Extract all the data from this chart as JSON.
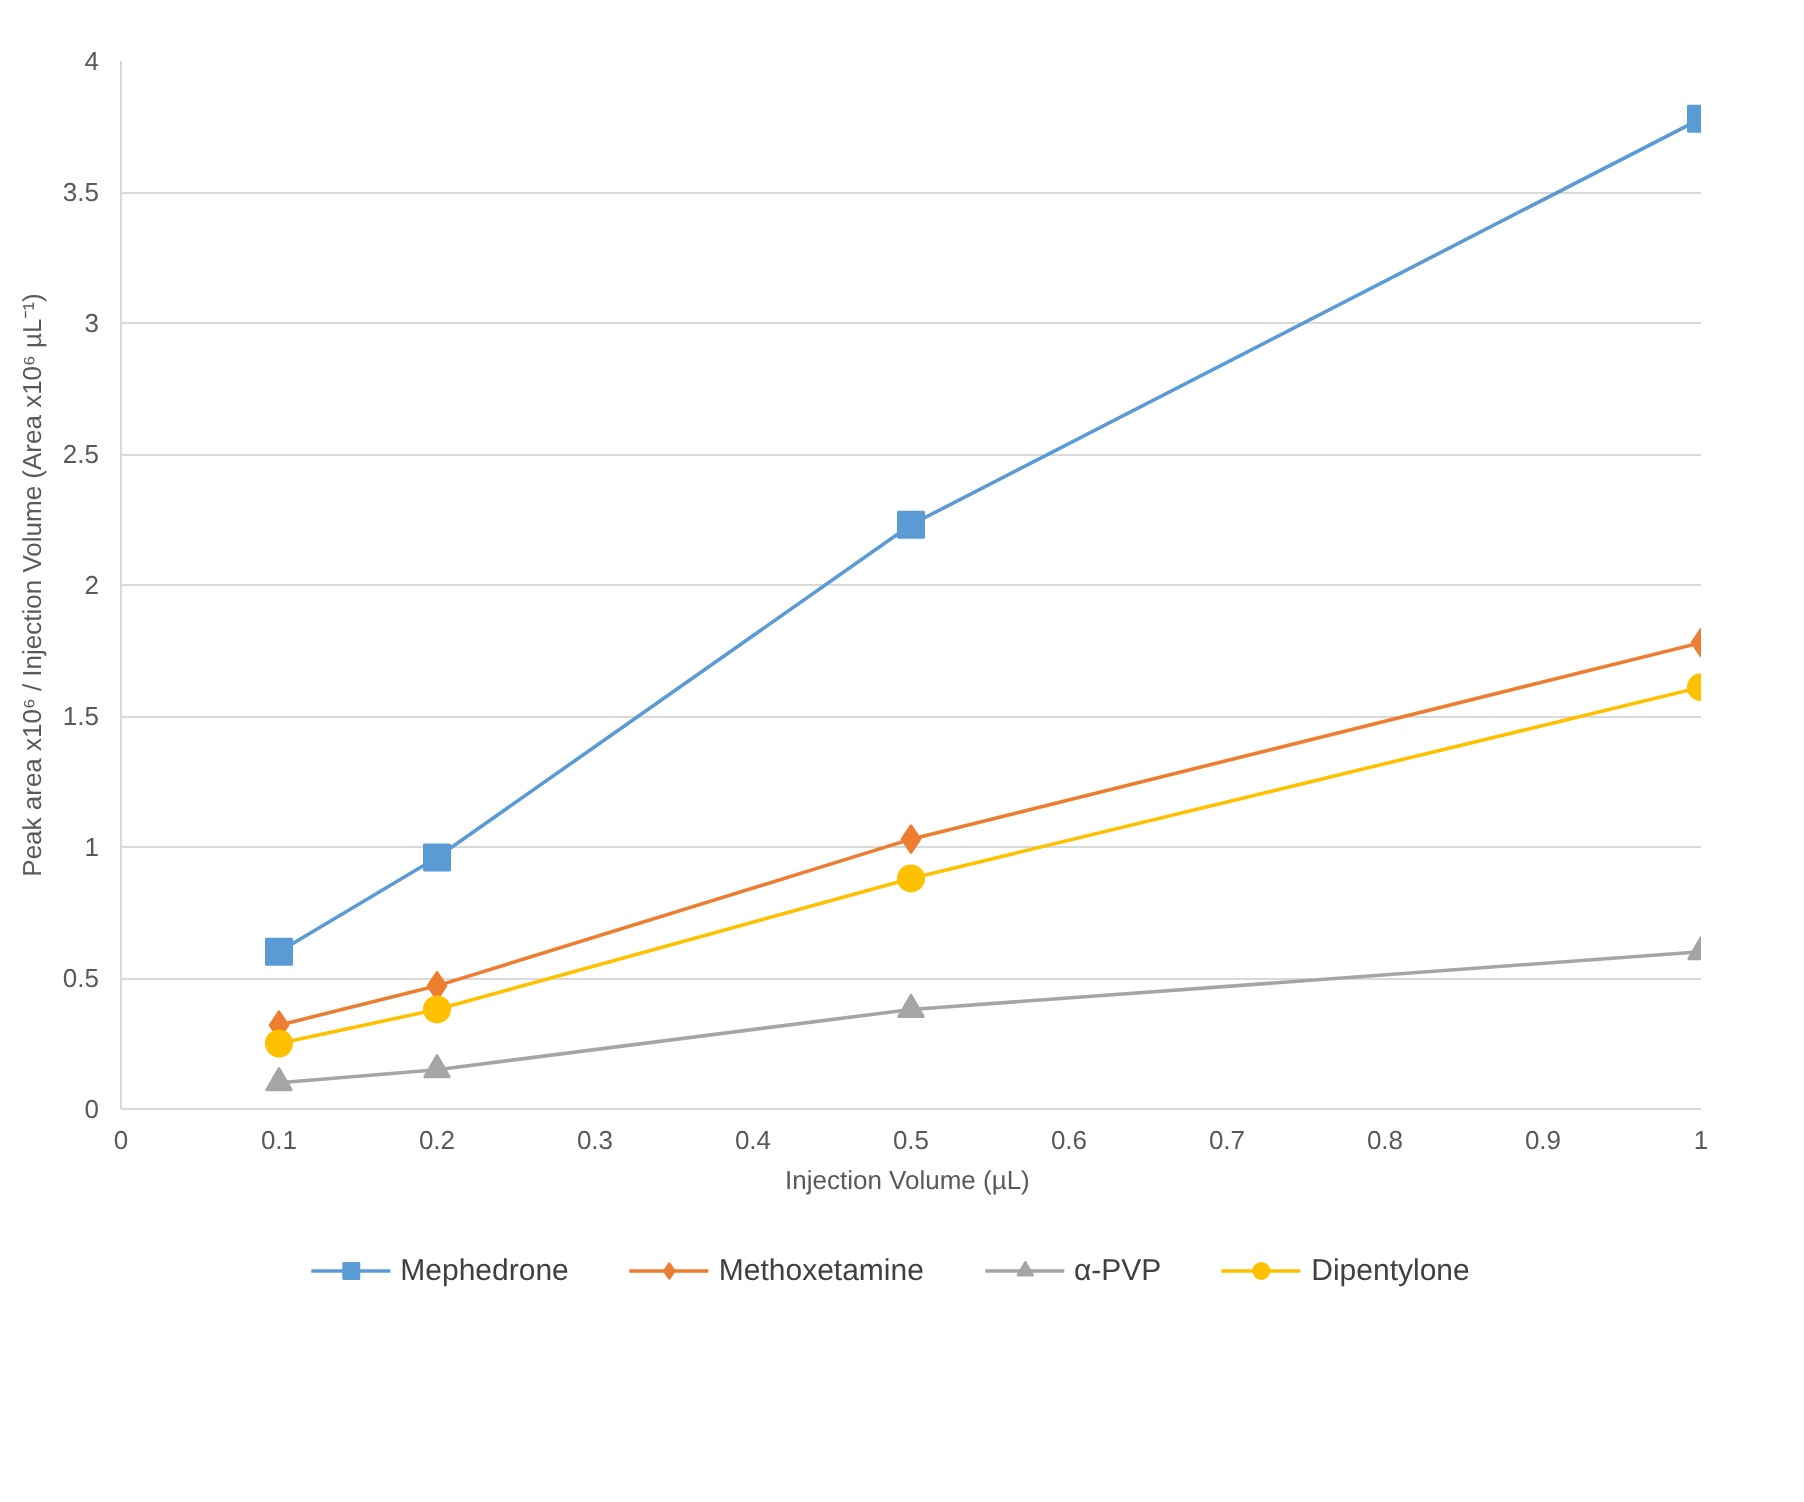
{
  "chart_data": {
    "type": "line",
    "xlabel": "Injection Volume  (µL)",
    "ylabel": "Peak area x10⁶ / Injection Volume (Area x10⁶ µL⁻¹)",
    "x": [
      0.1,
      0.2,
      0.5,
      1
    ],
    "series": [
      {
        "name": "Mephedrone",
        "color": "#5b9bd5",
        "marker": "square",
        "values": [
          0.6,
          0.96,
          2.23,
          3.78
        ]
      },
      {
        "name": "Methoxetamine",
        "color": "#ed7d31",
        "marker": "diamond",
        "values": [
          0.32,
          0.47,
          1.03,
          1.78
        ]
      },
      {
        "name": "α-PVP",
        "color": "#a5a5a5",
        "marker": "triangle",
        "values": [
          0.1,
          0.15,
          0.38,
          0.6
        ]
      },
      {
        "name": "Dipentylone",
        "color": "#ffc000",
        "marker": "circle",
        "values": [
          0.25,
          0.38,
          0.88,
          1.61
        ]
      }
    ],
    "xlim": [
      0,
      1
    ],
    "xticks": [
      0,
      0.1,
      0.2,
      0.3,
      0.4,
      0.5,
      0.6,
      0.7,
      0.8,
      0.9,
      1
    ],
    "ylim": [
      0,
      4
    ],
    "yticks": [
      0,
      0.5,
      1,
      1.5,
      2,
      2.5,
      3,
      3.5,
      4
    ],
    "grid": "y",
    "legend": "bottom",
    "line_style": "solid"
  }
}
